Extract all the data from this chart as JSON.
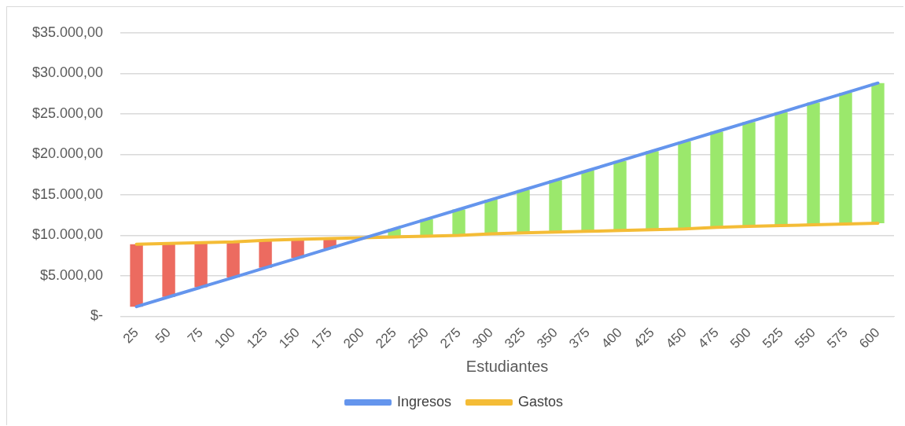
{
  "chart_data": {
    "type": "line",
    "xlabel": "Estudiantes",
    "categories": [
      "25",
      "50",
      "75",
      "100",
      "125",
      "150",
      "175",
      "200",
      "225",
      "250",
      "275",
      "300",
      "325",
      "350",
      "375",
      "400",
      "425",
      "450",
      "475",
      "500",
      "525",
      "550",
      "575",
      "600"
    ],
    "series": [
      {
        "name": "Ingresos",
        "color": "#6495ed",
        "values": [
          1200,
          2400,
          3600,
          4800,
          6000,
          7200,
          8400,
          9600,
          10800,
          12000,
          13200,
          14400,
          15600,
          16800,
          18000,
          19200,
          20400,
          21600,
          22800,
          24000,
          25200,
          26400,
          27600,
          28800
        ]
      },
      {
        "name": "Gastos",
        "color": "#f4bc36",
        "values": [
          8900,
          9000,
          9100,
          9200,
          9400,
          9500,
          9600,
          9700,
          9800,
          9900,
          10000,
          10200,
          10300,
          10400,
          10500,
          10600,
          10700,
          10800,
          11000,
          11100,
          11200,
          11300,
          11400,
          11500
        ]
      },
      {
        "type": "bar",
        "base": [
          1200,
          2400,
          3600,
          4800,
          6000,
          7200,
          8400,
          9600,
          9800,
          9900,
          10000,
          10200,
          10300,
          10400,
          10500,
          10600,
          10700,
          10800,
          11000,
          11100,
          11200,
          11300,
          11400,
          11500
        ],
        "values": [
          7700,
          6600,
          5500,
          4400,
          3400,
          2300,
          1200,
          100,
          1000,
          2100,
          3200,
          4200,
          5300,
          6400,
          7500,
          8600,
          9700,
          10800,
          11800,
          12900,
          14000,
          15100,
          16200,
          17300
        ],
        "colors": [
          "#ec6b60",
          "#ec6b60",
          "#ec6b60",
          "#ec6b60",
          "#ec6b60",
          "#ec6b60",
          "#ec6b60",
          "#ec6b60",
          "#9be86c",
          "#9be86c",
          "#9be86c",
          "#9be86c",
          "#9be86c",
          "#9be86c",
          "#9be86c",
          "#9be86c",
          "#9be86c",
          "#9be86c",
          "#9be86c",
          "#9be86c",
          "#9be86c",
          "#9be86c",
          "#9be86c",
          "#9be86c"
        ]
      }
    ],
    "ylim": [
      0,
      35000
    ],
    "yticks": [
      {
        "value": 0,
        "label": "$-"
      },
      {
        "value": 5000,
        "label": "$5.000,00"
      },
      {
        "value": 10000,
        "label": "$10.000,00"
      },
      {
        "value": 15000,
        "label": "$15.000,00"
      },
      {
        "value": 20000,
        "label": "$20.000,00"
      },
      {
        "value": 25000,
        "label": "$25.000,00"
      },
      {
        "value": 30000,
        "label": "$30.000,00"
      },
      {
        "value": 35000,
        "label": "$35.000,00"
      }
    ],
    "grid": "y",
    "legend": "bottom",
    "marker": "none",
    "line_style": "solid"
  }
}
